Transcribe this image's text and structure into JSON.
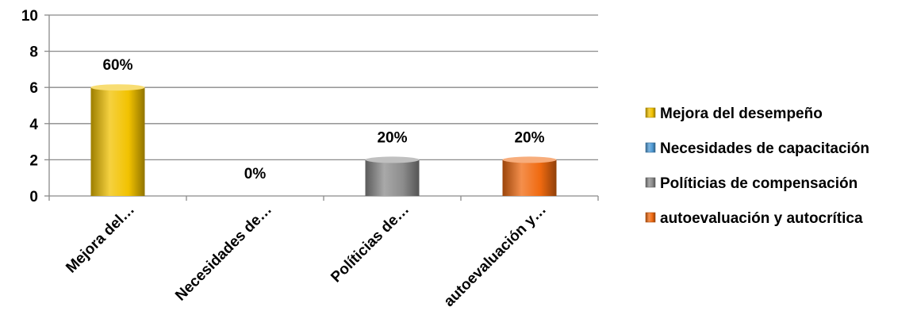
{
  "chart_data": {
    "type": "bar",
    "categories": [
      "Mejora del…",
      "Necesidades de…",
      "Políticias de…",
      "autoevaluación y…"
    ],
    "values": [
      6,
      0,
      2,
      2
    ],
    "data_labels": [
      "60%",
      "0%",
      "20%",
      "20%"
    ],
    "bar_colors": [
      "#f2c200",
      "#4f9bd6",
      "#8c8c8c",
      "#f06a10"
    ],
    "y_ticks": [
      0,
      2,
      4,
      6,
      8,
      10
    ],
    "ylim": [
      0,
      10
    ],
    "grid": true,
    "legend_position": "right",
    "legend": [
      {
        "label": "Mejora del desempeño",
        "color": "#f2c200"
      },
      {
        "label": "Necesidades de capacitación",
        "color": "#4f9bd6"
      },
      {
        "label": "Políticias de compensación",
        "color": "#8c8c8c"
      },
      {
        "label": "autoevaluación y autocrítica",
        "color": "#f06a10"
      }
    ]
  }
}
